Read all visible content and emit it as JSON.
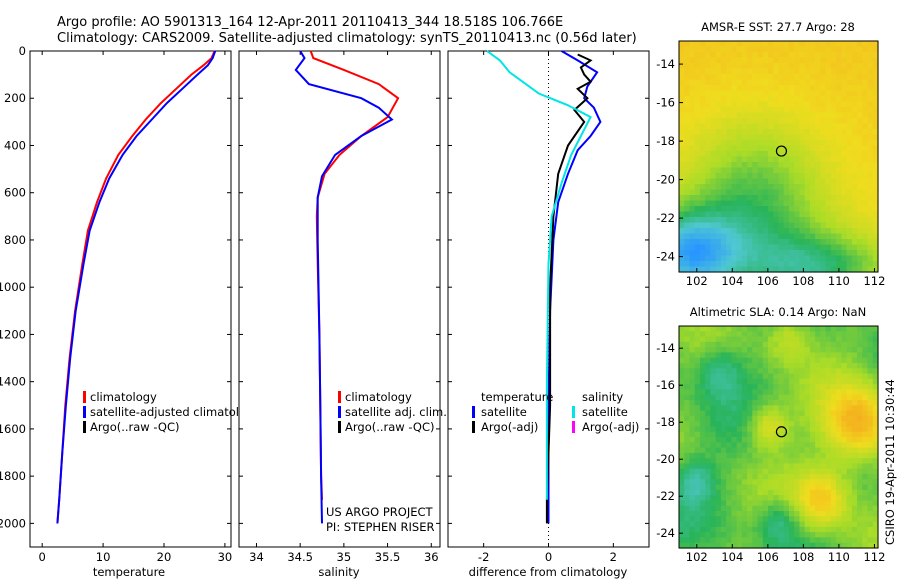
{
  "header": {
    "line1": "Argo profile: AO 5901313_164 12-Apr-2011 20110413_344 18.518S 106.766E",
    "line2": "Climatology: CARS2009. Satellite-adjusted climatology: synTS_20110413.nc (0.56d later)"
  },
  "colors": {
    "climatology": "#ff0000",
    "satellite": "#0000ff",
    "argo": "#000000",
    "satellite_salinity": "#00e5e5",
    "argo_salinity": "#ff00ff"
  },
  "credits": {
    "project": "US ARGO PROJECT",
    "pi": "PI: STEPHEN RISER",
    "stamp": "CSIRO 19-Apr-2011 10:30:44"
  },
  "chart_data": [
    {
      "type": "line",
      "id": "temperature",
      "xlabel": "temperature",
      "xlim": [
        -2,
        31
      ],
      "ylim": [
        0,
        2100
      ],
      "y_reversed": true,
      "xticks": [
        0,
        10,
        20,
        30
      ],
      "yticks": [
        0,
        200,
        400,
        600,
        800,
        1000,
        1200,
        1400,
        1600,
        1800,
        2000
      ],
      "legend": [
        "climatology",
        "satellite-adjusted climatology",
        "Argo(..raw -QC)"
      ],
      "series": [
        {
          "name": "climatology",
          "color": "climatology",
          "x": [
            28.3,
            27.8,
            26.5,
            24.5,
            22.0,
            19.5,
            17.0,
            14.8,
            12.5,
            10.5,
            9.0,
            7.5,
            6.6,
            5.4,
            4.5,
            3.8,
            3.3,
            2.8,
            2.5
          ],
          "y": [
            0,
            30,
            60,
            100,
            160,
            220,
            290,
            360,
            440,
            540,
            640,
            760,
            900,
            1100,
            1300,
            1500,
            1700,
            1900,
            2000
          ]
        },
        {
          "name": "satellite-adjusted climatology",
          "color": "satellite",
          "x": [
            28.4,
            28.0,
            27.2,
            25.5,
            23.0,
            20.5,
            18.0,
            15.5,
            13.2,
            11.0,
            9.4,
            7.8,
            6.8,
            5.5,
            4.6,
            3.9,
            3.3,
            2.8,
            2.5
          ],
          "y": [
            0,
            30,
            60,
            100,
            160,
            220,
            290,
            360,
            440,
            540,
            640,
            760,
            900,
            1100,
            1300,
            1500,
            1700,
            1900,
            2000
          ]
        }
      ]
    },
    {
      "type": "line",
      "id": "salinity",
      "xlabel": "salinity",
      "xlim": [
        33.8,
        36.1
      ],
      "ylim": [
        0,
        2100
      ],
      "y_reversed": true,
      "xticks": [
        34,
        34.5,
        35,
        35.5,
        36
      ],
      "legend": [
        "climatology",
        "satellite adj. clim.",
        "Argo(..raw -QC)"
      ],
      "series": [
        {
          "name": "climatology",
          "color": "climatology",
          "x": [
            34.62,
            34.65,
            35.0,
            35.4,
            35.62,
            35.5,
            35.2,
            34.95,
            34.78,
            34.7,
            34.69,
            34.7,
            34.72,
            34.73,
            34.74,
            34.75
          ],
          "y": [
            0,
            30,
            80,
            140,
            200,
            280,
            360,
            440,
            520,
            620,
            700,
            900,
            1200,
            1500,
            1800,
            1900
          ]
        },
        {
          "name": "satellite adj. clim.",
          "color": "satellite",
          "x": [
            34.5,
            34.55,
            34.45,
            34.6,
            35.2,
            35.4,
            35.55,
            35.2,
            34.9,
            34.75,
            34.7,
            34.7,
            34.72,
            34.73,
            34.74,
            34.75
          ],
          "y": [
            0,
            30,
            80,
            140,
            200,
            240,
            290,
            360,
            440,
            530,
            620,
            800,
            1200,
            1500,
            1800,
            2000
          ]
        }
      ]
    },
    {
      "type": "line",
      "id": "difference",
      "xlabel": "difference from climatology",
      "xlim": [
        -3.1,
        3.1
      ],
      "ylim": [
        0,
        2100
      ],
      "y_reversed": true,
      "xticks": [
        -2,
        0,
        2
      ],
      "legend_left_title": "temperature",
      "legend_right_title": "salinity",
      "legend_left": [
        "satellite",
        "Argo(-adj)"
      ],
      "legend_right": [
        "satellite",
        "Argo(-adj)"
      ],
      "series": [
        {
          "name": "temperature satellite",
          "color": "satellite",
          "x": [
            0.4,
            0.9,
            1.5,
            1.2,
            1.1,
            1.4,
            1.6,
            1.3,
            0.9,
            0.6,
            0.3,
            0.15,
            0.05,
            0.0,
            0.0
          ],
          "y": [
            0,
            40,
            90,
            150,
            200,
            240,
            300,
            360,
            420,
            520,
            640,
            800,
            1100,
            1500,
            2000
          ]
        },
        {
          "name": "temperature Argo",
          "color": "argo",
          "x": [
            0.9,
            1.3,
            1.0,
            1.1,
            1.3,
            0.9,
            1.2,
            0.8,
            1.1,
            0.6,
            0.3,
            0.15,
            0.05,
            0.05,
            -0.05,
            -0.05
          ],
          "y": [
            15,
            40,
            70,
            100,
            130,
            160,
            200,
            250,
            300,
            400,
            520,
            700,
            1000,
            1500,
            1900,
            2000
          ]
        },
        {
          "name": "salinity satellite",
          "color": "satellite_salinity",
          "x": [
            -1.9,
            -1.5,
            -1.2,
            -0.8,
            -0.3,
            0.6,
            1.3,
            1.0,
            0.7,
            0.4,
            0.1,
            0.0,
            -0.05,
            -0.05
          ],
          "y": [
            0,
            40,
            90,
            130,
            180,
            230,
            280,
            360,
            440,
            560,
            700,
            900,
            1400,
            1900
          ]
        }
      ]
    },
    {
      "type": "heatmap",
      "id": "sst",
      "title": "AMSR-E SST: 27.7 Argo: 28",
      "xlim": [
        101,
        112.2
      ],
      "ylim": [
        -24.8,
        -12.8
      ],
      "xticks": [
        102,
        104,
        106,
        108,
        110,
        112
      ],
      "yticks": [
        -14,
        -16,
        -18,
        -20,
        -22,
        -24
      ],
      "marker": {
        "lon": 106.766,
        "lat": -18.518
      }
    },
    {
      "type": "heatmap",
      "id": "sla",
      "title": "Altimetric SLA: 0.14 Argo: NaN",
      "xlim": [
        101,
        112.2
      ],
      "ylim": [
        -24.8,
        -12.8
      ],
      "xticks": [
        102,
        104,
        106,
        108,
        110,
        112
      ],
      "yticks": [
        -14,
        -16,
        -18,
        -20,
        -22,
        -24
      ],
      "marker": {
        "lon": 106.766,
        "lat": -18.518
      }
    }
  ]
}
